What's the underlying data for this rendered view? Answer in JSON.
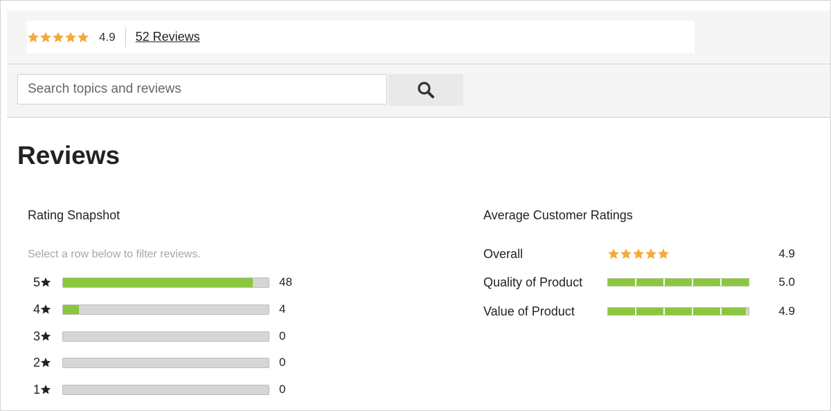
{
  "summary": {
    "rating": "4.9",
    "stars_filled": 5,
    "reviews_link": "52 Reviews"
  },
  "search": {
    "placeholder": "Search topics and reviews",
    "button_icon": "search-icon"
  },
  "page_title": "Reviews",
  "snapshot": {
    "title": "Rating Snapshot",
    "hint": "Select a row below to filter reviews.",
    "rows": [
      {
        "stars": "5",
        "count": "48",
        "fraction": 0.923
      },
      {
        "stars": "4",
        "count": "4",
        "fraction": 0.077
      },
      {
        "stars": "3",
        "count": "0",
        "fraction": 0
      },
      {
        "stars": "2",
        "count": "0",
        "fraction": 0
      },
      {
        "stars": "1",
        "count": "0",
        "fraction": 0
      }
    ]
  },
  "averages": {
    "title": "Average Customer Ratings",
    "rows": [
      {
        "label": "Overall",
        "value": "4.9",
        "display": "stars",
        "score": 4.9
      },
      {
        "label": "Quality of Product",
        "value": "5.0",
        "display": "bar",
        "score": 5.0
      },
      {
        "label": "Value of Product",
        "value": "4.9",
        "display": "bar",
        "score": 4.9
      }
    ]
  },
  "colors": {
    "star": "#f5a93b",
    "bar_fill": "#8cc63f",
    "bar_empty": "#d6d6d6"
  }
}
